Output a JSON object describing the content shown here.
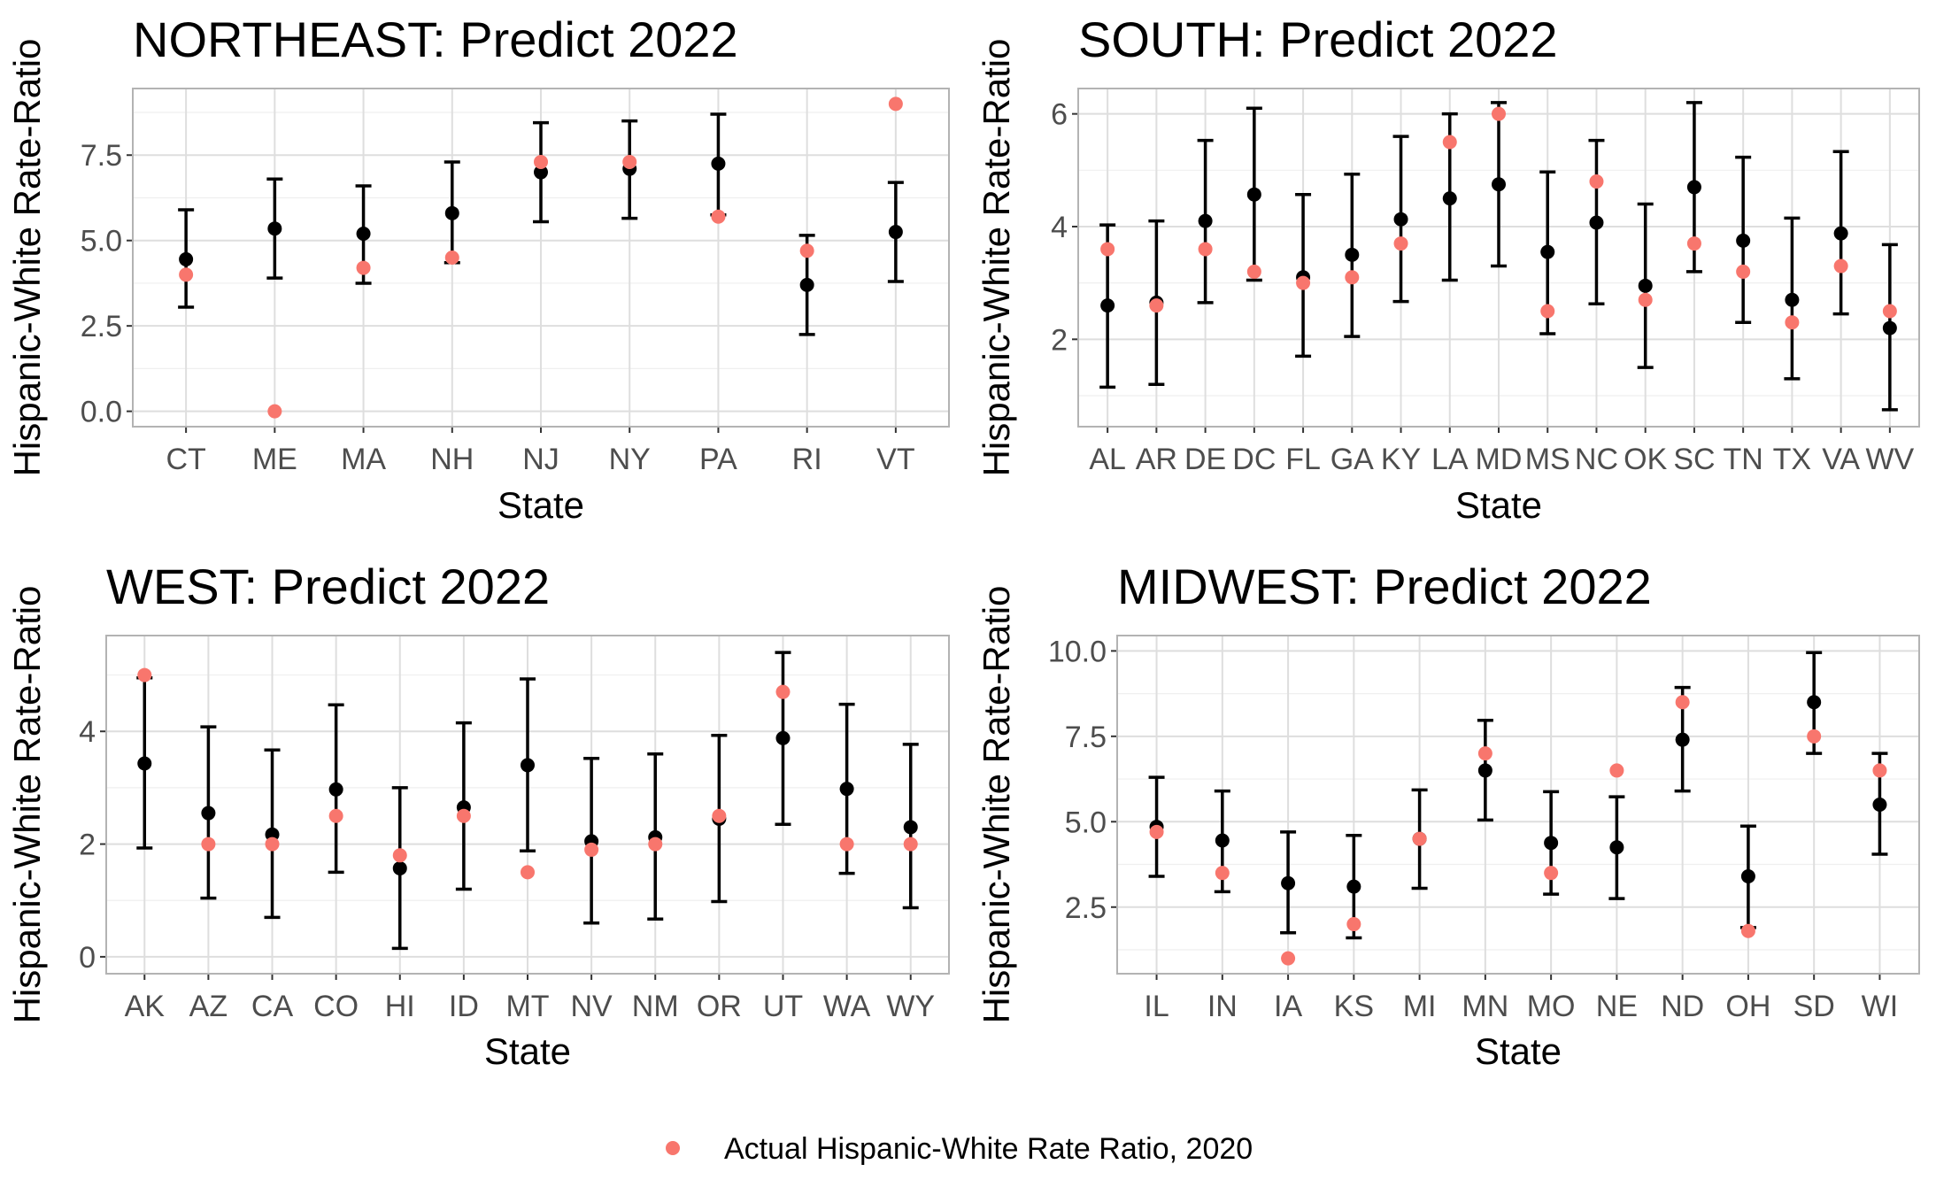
{
  "chart_data": [
    {
      "type": "scatter",
      "title": "NORTHEAST: Predict 2022",
      "xlabel": "State",
      "ylabel": "Hispanic-White Rate-Ratio",
      "categories": [
        "CT",
        "ME",
        "MA",
        "NH",
        "NJ",
        "NY",
        "PA",
        "RI",
        "VT"
      ],
      "ylim": [
        -0.45,
        9.45
      ],
      "yticks": [
        0,
        2.5,
        5,
        7.5
      ],
      "ytick_labels": [
        "0.0",
        "2.5",
        "5.0",
        "7.5"
      ],
      "series": [
        {
          "values": [
            4.45,
            5.35,
            5.2,
            5.8,
            7.0,
            7.1,
            7.25,
            3.7,
            5.25
          ],
          "lower": [
            3.05,
            3.9,
            3.75,
            4.35,
            5.55,
            5.65,
            5.75,
            2.25,
            3.8
          ],
          "upper": [
            5.9,
            6.8,
            6.6,
            7.3,
            8.45,
            8.5,
            8.7,
            5.15,
            6.7
          ]
        },
        {
          "name": "Actual Hispanic-White Rate Ratio, 2020",
          "values": [
            4.0,
            0.0,
            4.2,
            4.5,
            7.3,
            7.3,
            5.7,
            4.7,
            9.0
          ]
        }
      ],
      "grid": true
    },
    {
      "type": "scatter",
      "title": "SOUTH: Predict 2022",
      "xlabel": "State",
      "ylabel": "Hispanic-White Rate-Ratio",
      "categories": [
        "AL",
        "AR",
        "DE",
        "DC",
        "FL",
        "GA",
        "KY",
        "LA",
        "MD",
        "MS",
        "NC",
        "OK",
        "SC",
        "TN",
        "TX",
        "VA",
        "WV"
      ],
      "ylim": [
        0.45,
        6.45
      ],
      "yticks": [
        2,
        4,
        6
      ],
      "ytick_labels": [
        "2",
        "4",
        "6"
      ],
      "series": [
        {
          "values": [
            2.6,
            2.65,
            4.1,
            4.57,
            3.1,
            3.5,
            4.13,
            4.5,
            4.75,
            3.55,
            4.07,
            2.95,
            4.7,
            3.75,
            2.7,
            3.88,
            2.2
          ],
          "lower": [
            1.15,
            1.2,
            2.65,
            3.05,
            1.7,
            2.05,
            2.67,
            3.05,
            3.3,
            2.1,
            2.63,
            1.5,
            3.2,
            2.3,
            1.3,
            2.45,
            0.75
          ],
          "upper": [
            4.03,
            4.1,
            5.53,
            6.1,
            4.57,
            4.93,
            5.6,
            6.0,
            6.2,
            4.97,
            5.53,
            4.4,
            6.2,
            5.23,
            4.15,
            5.33,
            3.68
          ]
        },
        {
          "name": "Actual Hispanic-White Rate Ratio, 2020",
          "values": [
            3.6,
            2.6,
            3.6,
            3.2,
            3.0,
            3.1,
            3.7,
            5.5,
            6.0,
            2.5,
            4.8,
            2.7,
            3.7,
            3.2,
            2.3,
            3.3,
            2.5
          ]
        }
      ],
      "grid": true
    },
    {
      "type": "scatter",
      "title": "WEST: Predict 2022",
      "xlabel": "State",
      "ylabel": "Hispanic-White Rate-Ratio",
      "categories": [
        "AK",
        "AZ",
        "CA",
        "CO",
        "HI",
        "ID",
        "MT",
        "NV",
        "NM",
        "OR",
        "UT",
        "WA",
        "WY"
      ],
      "ylim": [
        -0.3,
        5.7
      ],
      "yticks": [
        0,
        2,
        4
      ],
      "ytick_labels": [
        "0",
        "2",
        "4"
      ],
      "series": [
        {
          "values": [
            3.43,
            2.55,
            2.17,
            2.97,
            1.57,
            2.65,
            3.4,
            2.05,
            2.12,
            2.45,
            3.88,
            2.98,
            2.3
          ],
          "lower": [
            1.93,
            1.04,
            0.7,
            1.5,
            0.15,
            1.2,
            1.88,
            0.6,
            0.67,
            0.98,
            2.35,
            1.48,
            0.87
          ],
          "upper": [
            4.95,
            4.08,
            3.67,
            4.47,
            3.0,
            4.15,
            4.93,
            3.52,
            3.6,
            3.93,
            5.4,
            4.48,
            3.77
          ]
        },
        {
          "name": "Actual Hispanic-White Rate Ratio, 2020",
          "values": [
            5.0,
            2.0,
            2.0,
            2.5,
            1.8,
            2.5,
            1.5,
            1.9,
            2.0,
            2.5,
            4.7,
            2.0,
            2.0
          ]
        }
      ],
      "grid": true
    },
    {
      "type": "scatter",
      "title": "MIDWEST: Predict 2022",
      "xlabel": "State",
      "ylabel": "Hispanic-White Rate-Ratio",
      "categories": [
        "IL",
        "IN",
        "IA",
        "KS",
        "MI",
        "MN",
        "MO",
        "NE",
        "ND",
        "OH",
        "SD",
        "WI"
      ],
      "ylim": [
        0.55,
        10.45
      ],
      "yticks": [
        2.5,
        5,
        7.5,
        10
      ],
      "ytick_labels": [
        "2.5",
        "5.0",
        "7.5",
        "10.0"
      ],
      "series": [
        {
          "values": [
            4.85,
            4.45,
            3.2,
            3.1,
            4.5,
            6.5,
            4.38,
            4.25,
            7.4,
            3.4,
            8.5,
            5.5
          ],
          "lower": [
            3.4,
            2.95,
            1.75,
            1.6,
            3.05,
            5.05,
            2.88,
            2.75,
            5.9,
            1.9,
            7.0,
            4.05
          ],
          "upper": [
            6.3,
            5.9,
            4.7,
            4.6,
            5.93,
            7.97,
            5.88,
            5.73,
            8.93,
            4.87,
            9.95,
            7.0
          ]
        },
        {
          "name": "Actual Hispanic-White Rate Ratio, 2020",
          "values": [
            4.7,
            3.5,
            1.0,
            2.0,
            4.5,
            7.0,
            3.5,
            6.5,
            8.5,
            1.8,
            7.5,
            6.5
          ]
        }
      ],
      "grid": true
    }
  ],
  "legend": {
    "label": "Actual Hispanic-White Rate Ratio, 2020",
    "placement": "bottom"
  },
  "colors": {
    "predicted": "#000000",
    "actual": "#F8766D",
    "panel_border": "#b3b3b3",
    "grid_major": "#dedede",
    "grid_minor": "#efefef",
    "tick_text": "#4d4d4d"
  }
}
